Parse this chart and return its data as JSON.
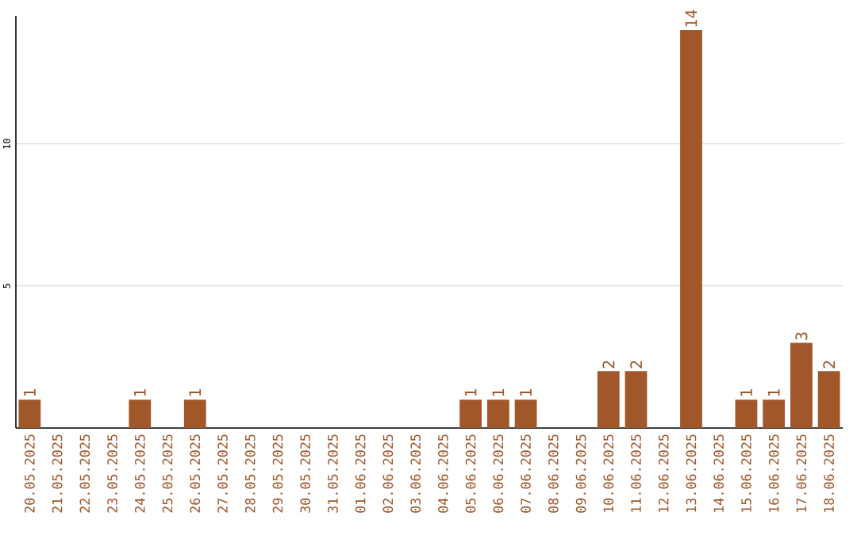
{
  "chart_data": {
    "type": "bar",
    "categories": [
      "20.05.2025",
      "21.05.2025",
      "22.05.2025",
      "23.05.2025",
      "24.05.2025",
      "25.05.2025",
      "26.05.2025",
      "27.05.2025",
      "28.05.2025",
      "29.05.2025",
      "30.05.2025",
      "31.05.2025",
      "01.06.2025",
      "02.06.2025",
      "03.06.2025",
      "04.06.2025",
      "05.06.2025",
      "06.06.2025",
      "07.06.2025",
      "08.06.2025",
      "09.06.2025",
      "10.06.2025",
      "11.06.2025",
      "12.06.2025",
      "13.06.2025",
      "14.06.2025",
      "15.06.2025",
      "16.06.2025",
      "17.06.2025",
      "18.06.2025"
    ],
    "values": [
      1,
      0,
      0,
      0,
      1,
      0,
      1,
      0,
      0,
      0,
      0,
      0,
      0,
      0,
      0,
      0,
      1,
      1,
      1,
      0,
      0,
      2,
      2,
      0,
      14,
      0,
      1,
      1,
      3,
      2
    ],
    "value_labels": [
      "1",
      null,
      null,
      null,
      "1",
      null,
      "1",
      null,
      null,
      null,
      null,
      null,
      null,
      null,
      null,
      null,
      "1",
      "1",
      "1",
      null,
      null,
      "2",
      "2",
      null,
      "14",
      null,
      "1",
      "1",
      "3",
      "2"
    ],
    "color": "#a0572a",
    "ylim": [
      0,
      14.5
    ],
    "yticks": [
      5,
      10
    ],
    "grid": "y"
  }
}
